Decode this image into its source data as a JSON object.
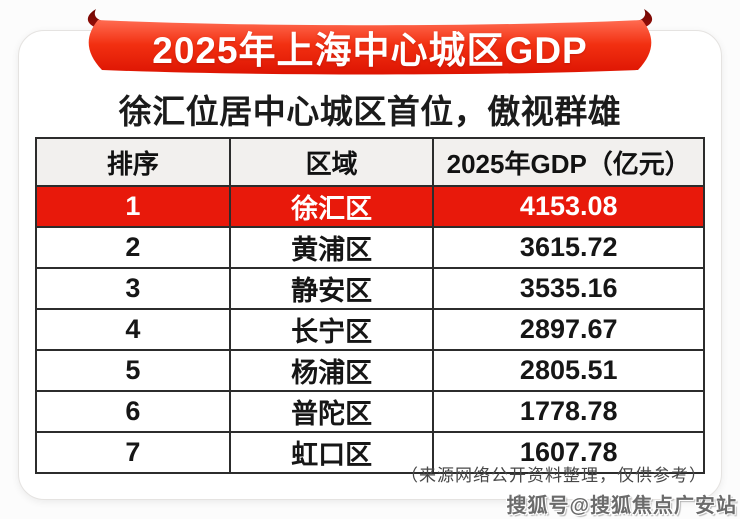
{
  "banner": {
    "title": "2025年上海中心城区GDP"
  },
  "subtitle": "徐汇位居中心城区首位，傲视群雄",
  "table": {
    "headers": [
      "排序",
      "区域",
      "2025年GDP（亿元）"
    ],
    "rows": [
      {
        "rank": "1",
        "region": "徐汇区",
        "gdp": "4153.08",
        "highlight": true
      },
      {
        "rank": "2",
        "region": "黄浦区",
        "gdp": "3615.72",
        "highlight": false
      },
      {
        "rank": "3",
        "region": "静安区",
        "gdp": "3535.16",
        "highlight": false
      },
      {
        "rank": "4",
        "region": "长宁区",
        "gdp": "2897.67",
        "highlight": false
      },
      {
        "rank": "5",
        "region": "杨浦区",
        "gdp": "2805.51",
        "highlight": false
      },
      {
        "rank": "6",
        "region": "普陀区",
        "gdp": "1778.78",
        "highlight": false
      },
      {
        "rank": "7",
        "region": "虹口区",
        "gdp": "1607.78",
        "highlight": false
      }
    ]
  },
  "footer": {
    "source_note": "（来源网络公开资料整理，仅供参考）",
    "watermark": "搜狐号@搜狐焦点广安站"
  },
  "colors": {
    "ribbon_red": "#f23011",
    "ribbon_red_light": "#ff6b51",
    "ribbon_red_dark": "#dd1402",
    "ribbon_fold": "#8a0b04",
    "highlight_red": "#e8190b",
    "header_bg": "#f2f0ee",
    "table_border": "#2c2c2c"
  },
  "chart_data": {
    "type": "table",
    "title": "2025年上海中心城区GDP",
    "subtitle": "徐汇位居中心城区首位，傲视群雄",
    "columns": [
      "排序",
      "区域",
      "2025年GDP（亿元）"
    ],
    "rows": [
      [
        1,
        "徐汇区",
        4153.08
      ],
      [
        2,
        "黄浦区",
        3615.72
      ],
      [
        3,
        "静安区",
        3535.16
      ],
      [
        4,
        "长宁区",
        2897.67
      ],
      [
        5,
        "杨浦区",
        2805.51
      ],
      [
        6,
        "普陀区",
        1778.78
      ],
      [
        7,
        "虹口区",
        1607.78
      ]
    ],
    "highlighted_rank": 1,
    "unit": "亿元",
    "note": "（来源网络公开资料整理，仅供参考）"
  }
}
